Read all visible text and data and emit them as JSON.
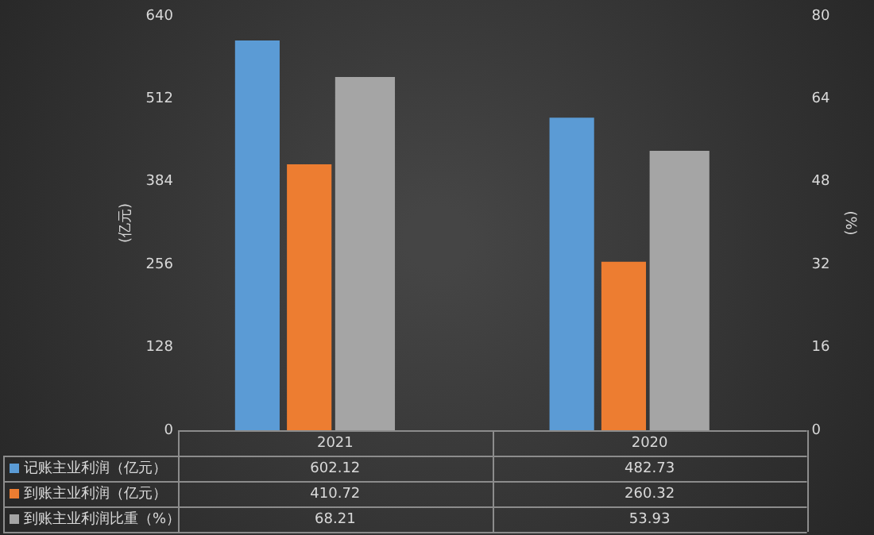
{
  "chart_data": {
    "type": "bar",
    "categories": [
      "2021",
      "2020"
    ],
    "ylabel": "(亿元)",
    "y2label": "(%)",
    "ylim": [
      0,
      640
    ],
    "yticks": [
      0,
      128,
      256,
      384,
      512,
      640
    ],
    "y2lim": [
      0,
      80
    ],
    "y2ticks": [
      0,
      16,
      32,
      48,
      64,
      80
    ],
    "series": [
      {
        "name": "记账主业利润（亿元）",
        "color": "#5b9bd5",
        "values": [
          602.12,
          482.73
        ]
      },
      {
        "name": "到账主业利润（亿元）",
        "color": "#ed7d31",
        "values": [
          410.72,
          260.32
        ]
      },
      {
        "name": "到账主业利润比重（%）",
        "color": "#a5a5a5",
        "values": [
          68.21,
          53.93
        ],
        "axis": "y2"
      }
    ],
    "data_labels": true,
    "legend": "bottom",
    "grid": false
  }
}
